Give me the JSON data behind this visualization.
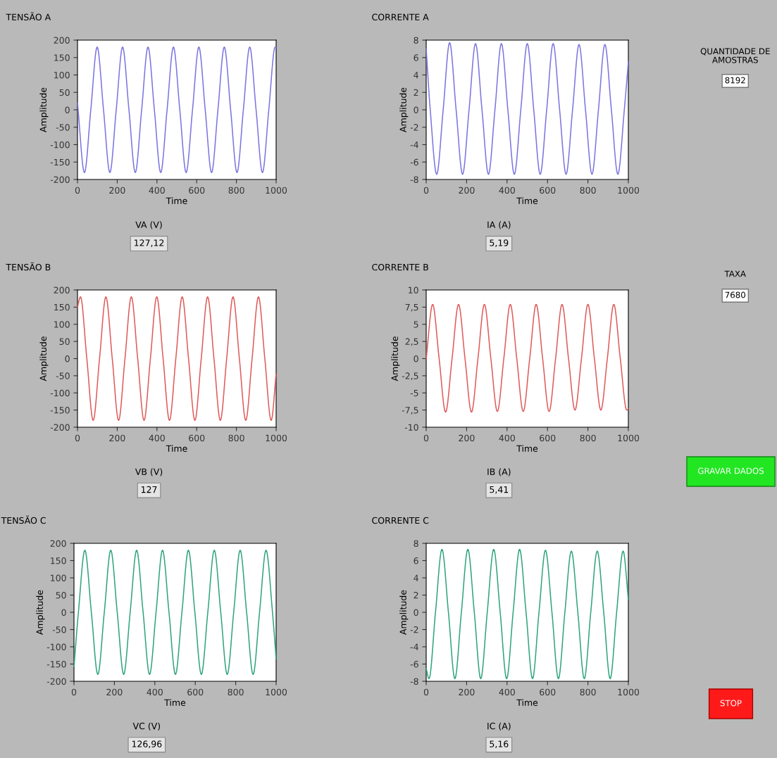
{
  "chart_data": [
    {
      "type": "line",
      "title": "TENSÃO A",
      "xlabel": "Time",
      "ylabel": "Amplitude",
      "annotations": [
        "VA (V)",
        "127,12"
      ],
      "xlim": [
        0,
        1000
      ],
      "xticks": [
        0,
        200,
        400,
        600,
        800,
        1000
      ],
      "ylim": [
        -200,
        200
      ],
      "yticks": [
        -200,
        -150,
        -100,
        -50,
        0,
        50,
        100,
        150,
        200
      ],
      "series": [
        {
          "color": "#7b74e0",
          "x": [
            0,
            35,
            67,
            99,
            131,
            163,
            195,
            227,
            259,
            291,
            323,
            355,
            387,
            419,
            451,
            483,
            515,
            547,
            579,
            611,
            643,
            675,
            707,
            739,
            771,
            803,
            835,
            867,
            899,
            931,
            963,
            995,
            1000
          ],
          "values": [
            20,
            -180,
            0,
            180,
            0,
            -180,
            0,
            180,
            0,
            -180,
            0,
            180,
            0,
            -180,
            0,
            180,
            0,
            -180,
            0,
            180,
            0,
            -180,
            0,
            180,
            0,
            -180,
            0,
            180,
            0,
            -180,
            0,
            180,
            178
          ]
        }
      ]
    },
    {
      "type": "line",
      "title": "CORRENTE A",
      "xlabel": "Time",
      "ylabel": "Amplitude",
      "annotations": [
        "IA (A)",
        "5,19"
      ],
      "xlim": [
        0,
        1000
      ],
      "xticks": [
        0,
        200,
        400,
        600,
        800,
        1000
      ],
      "ylim": [
        -8,
        8
      ],
      "yticks": [
        -8,
        -6,
        -4,
        -2,
        0,
        2,
        4,
        6,
        8
      ],
      "series": [
        {
          "color": "#7b74e0",
          "x": [
            0,
            20,
            52,
            84,
            116,
            148,
            180,
            212,
            244,
            276,
            308,
            340,
            372,
            404,
            436,
            468,
            500,
            532,
            564,
            596,
            628,
            660,
            692,
            724,
            756,
            788,
            820,
            852,
            884,
            916,
            948,
            980,
            1000
          ],
          "values": [
            7,
            0,
            -7.4,
            0,
            7.7,
            0,
            -7.4,
            0,
            7.6,
            0,
            -7.4,
            0,
            7.6,
            0,
            -7.4,
            0,
            7.6,
            0,
            -7.4,
            0,
            7.6,
            0,
            -7.4,
            0,
            7.5,
            0,
            -7.4,
            0,
            7.5,
            0,
            -7.4,
            0,
            5.5
          ]
        }
      ]
    },
    {
      "type": "line",
      "title": "TENSÃO B",
      "xlabel": "Time",
      "ylabel": "Amplitude",
      "annotations": [
        "VB (V)",
        "127"
      ],
      "xlim": [
        0,
        1000
      ],
      "xticks": [
        0,
        200,
        400,
        600,
        800,
        1000
      ],
      "ylim": [
        -200,
        200
      ],
      "yticks": [
        -200,
        -150,
        -100,
        -50,
        0,
        50,
        100,
        150,
        200
      ],
      "series": [
        {
          "color": "#e05a5a",
          "x": [
            0,
            15,
            47,
            79,
            111,
            143,
            175,
            207,
            239,
            271,
            303,
            335,
            367,
            399,
            431,
            463,
            495,
            527,
            559,
            591,
            623,
            655,
            687,
            719,
            751,
            783,
            815,
            847,
            879,
            911,
            943,
            975,
            1000
          ],
          "values": [
            150,
            180,
            0,
            -180,
            0,
            180,
            0,
            -180,
            0,
            180,
            0,
            -180,
            0,
            180,
            0,
            -180,
            0,
            180,
            0,
            -180,
            0,
            180,
            0,
            -180,
            0,
            180,
            0,
            -180,
            0,
            180,
            0,
            -180,
            -45
          ]
        }
      ]
    },
    {
      "type": "line",
      "title": "CORRENTE B",
      "xlabel": "Time",
      "ylabel": "Amplitude",
      "annotations": [
        "IB (A)",
        "5,41"
      ],
      "xlim": [
        0,
        1000
      ],
      "xticks": [
        0,
        200,
        400,
        600,
        800,
        1000
      ],
      "ylim": [
        -10,
        10
      ],
      "yticks": [
        -10,
        {
          "value": -7.5,
          "label": "-7,5"
        },
        -5,
        {
          "value": -2.5,
          "label": "-2,5"
        },
        0,
        {
          "value": 2.5,
          "label": "2,5"
        },
        5,
        {
          "value": 7.5,
          "label": "7,5"
        },
        10
      ],
      "series": [
        {
          "color": "#e05a5a",
          "x": [
            0,
            32,
            64,
            96,
            128,
            160,
            192,
            224,
            256,
            288,
            320,
            352,
            384,
            416,
            448,
            480,
            512,
            544,
            576,
            608,
            640,
            672,
            704,
            736,
            768,
            800,
            832,
            864,
            896,
            928,
            960,
            992,
            1000
          ],
          "values": [
            0,
            7.9,
            0,
            -7.8,
            0,
            7.9,
            0,
            -7.8,
            0,
            7.9,
            0,
            -7.7,
            0,
            7.9,
            0,
            -7.7,
            0,
            7.9,
            0,
            -7.7,
            0,
            7.9,
            0,
            -7.5,
            0,
            7.9,
            0,
            -7.5,
            0,
            7.9,
            0,
            -7.5,
            -7.3
          ]
        }
      ]
    },
    {
      "type": "line",
      "title": "TENSÃO C",
      "xlabel": "Time",
      "ylabel": "Amplitude",
      "annotations": [
        "VC (V)",
        "126,96"
      ],
      "xlim": [
        0,
        1000
      ],
      "xticks": [
        0,
        200,
        400,
        600,
        800,
        1000
      ],
      "ylim": [
        -200,
        200
      ],
      "yticks": [
        -200,
        -150,
        -100,
        -50,
        0,
        50,
        100,
        150,
        200
      ],
      "series": [
        {
          "color": "#2fa57a",
          "x": [
            0,
            22,
            54,
            86,
            118,
            150,
            182,
            214,
            246,
            278,
            310,
            342,
            374,
            406,
            438,
            470,
            502,
            534,
            566,
            598,
            630,
            662,
            694,
            726,
            758,
            790,
            822,
            854,
            886,
            918,
            950,
            982,
            1000
          ],
          "values": [
            -158,
            0,
            180,
            0,
            -180,
            0,
            180,
            0,
            -180,
            0,
            180,
            0,
            -180,
            0,
            180,
            0,
            -180,
            0,
            180,
            0,
            -180,
            0,
            180,
            0,
            -180,
            0,
            180,
            0,
            -180,
            0,
            180,
            0,
            -135
          ]
        }
      ]
    },
    {
      "type": "line",
      "title": "CORRENTE C",
      "xlabel": "Time",
      "ylabel": "Amplitude",
      "annotations": [
        "IC (A)",
        "5,16"
      ],
      "xlim": [
        0,
        1000
      ],
      "xticks": [
        0,
        200,
        400,
        600,
        800,
        1000
      ],
      "ylim": [
        -8,
        8
      ],
      "yticks": [
        -8,
        -6,
        -4,
        -2,
        0,
        2,
        4,
        6,
        8
      ],
      "series": [
        {
          "color": "#2fa57a",
          "x": [
            0,
            14,
            46,
            78,
            110,
            142,
            174,
            206,
            238,
            270,
            302,
            334,
            366,
            398,
            430,
            462,
            494,
            526,
            558,
            590,
            622,
            654,
            686,
            718,
            750,
            782,
            814,
            846,
            878,
            910,
            942,
            974,
            1000
          ],
          "values": [
            -6.5,
            -7.7,
            0,
            7.3,
            0,
            -7.7,
            0,
            7.3,
            0,
            -7.7,
            0,
            7.3,
            0,
            -7.7,
            0,
            7.3,
            0,
            -7.7,
            0,
            7.2,
            0,
            -7.7,
            0,
            7.1,
            0,
            -7.7,
            0,
            7.1,
            0,
            -7.7,
            0,
            7.1,
            1.5
          ]
        }
      ]
    },
    {
      "type": "other",
      "annotations": [
        "QUANTIDADE DE\nAMOSTRAS",
        "8192",
        "TAXA",
        "7680",
        "GRAVAR DADOS",
        "STOP"
      ]
    }
  ]
}
